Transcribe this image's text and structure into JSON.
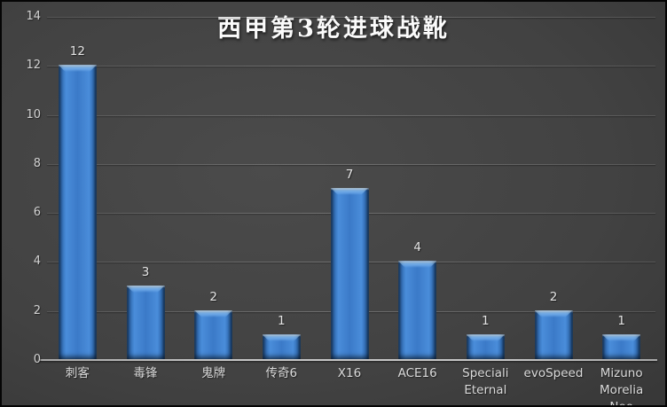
{
  "chart_data": {
    "type": "bar",
    "title": "西甲第3轮进球战靴",
    "categories": [
      "刺客",
      "毒锋",
      "鬼牌",
      "传奇6",
      "X16",
      "ACE16",
      "Speciali Eternal",
      "evoSpeed",
      "Mizuno Morelia Neo"
    ],
    "values": [
      12,
      3,
      2,
      1,
      7,
      4,
      1,
      2,
      1
    ],
    "data_labels": [
      "12",
      "3",
      "2",
      "1",
      "7",
      "4",
      "1",
      "2",
      "1"
    ],
    "xlabel": "",
    "ylabel": "",
    "ylim": [
      0,
      14
    ],
    "ytick_step": 2,
    "ytick_labels": [
      "0",
      "2",
      "4",
      "6",
      "8",
      "10",
      "12",
      "14"
    ],
    "grid": true,
    "legend": false
  },
  "colors": {
    "background": "#3d3d3d",
    "bar_face": "#3b7ac8",
    "bar_highlight": "#a3d0f7",
    "bar_edge": "#1d4c83",
    "gridline": "#5c5c5c",
    "axis_line": "#c6c6c6",
    "title_text": "#fbfbfb",
    "tick_text": "#d2d2d2",
    "value_label_text": "#e4e4e4"
  }
}
